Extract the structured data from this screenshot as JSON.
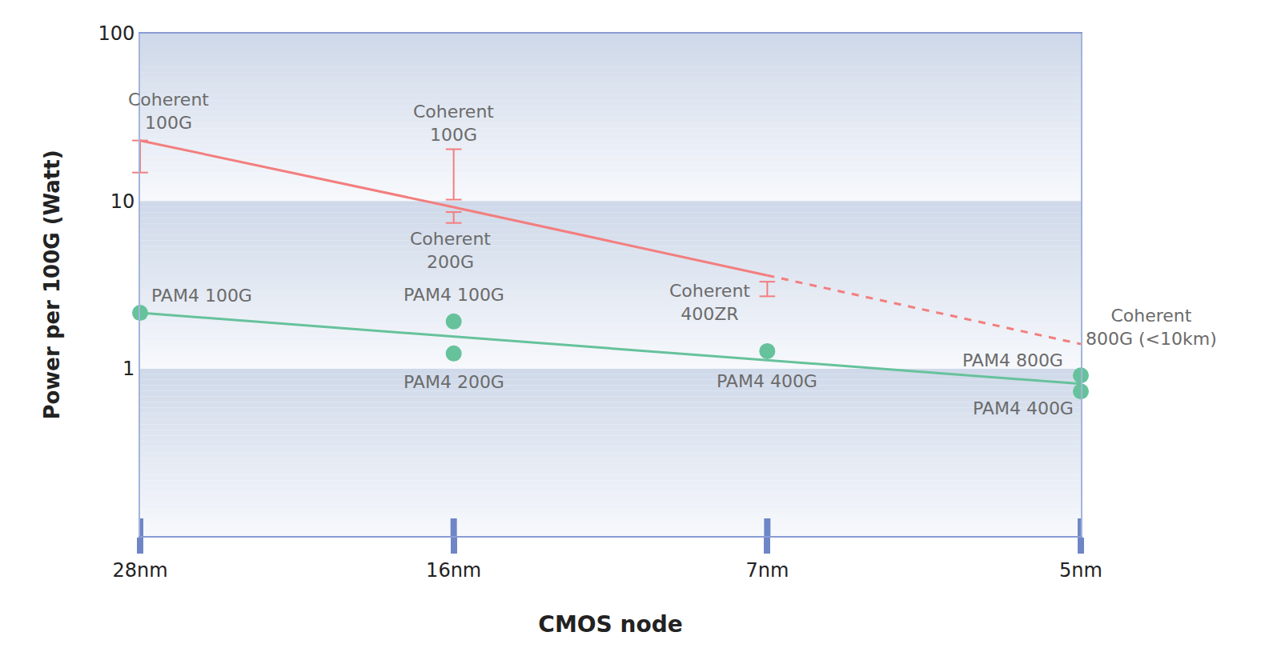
{
  "chart_data": {
    "type": "line",
    "x_label": "CMOS node",
    "y_label": "Power per 100G (Watt)",
    "categories": [
      "28nm",
      "16nm",
      "7nm",
      "5nm"
    ],
    "log": "y",
    "ylim": [
      0.1,
      100
    ],
    "yticks": [
      1,
      10,
      100
    ],
    "series": [
      {
        "color": "#f37e7e",
        "line_style": "solid",
        "values": [
          23,
          9.2,
          3.6,
          null
        ]
      },
      {
        "color": "#f37e7e",
        "line_style": "dashed",
        "values": [
          null,
          null,
          3.6,
          1.4
        ],
        "end_label": "Coherent\n800G (<10km)"
      },
      {
        "color": "#66c29b",
        "line_style": "solid",
        "values": [
          2.15,
          1.55,
          1.12,
          0.81
        ]
      }
    ],
    "ranges": [
      {
        "category": "28nm",
        "low": 14.8,
        "high": 23,
        "label": "Coherent\n100G",
        "color": "#f37e7e"
      },
      {
        "category": "16nm",
        "low": 10.2,
        "high": 20.4,
        "label": "Coherent\n100G",
        "color": "#f37e7e"
      },
      {
        "category": "16nm",
        "low": 7.4,
        "high": 8.6,
        "label": "Coherent\n200G",
        "color": "#f37e7e"
      },
      {
        "category": "7nm",
        "low": 2.7,
        "high": 3.3,
        "label": "Coherent\n400ZR",
        "color": "#f37e7e"
      }
    ],
    "points": [
      {
        "category": "28nm",
        "value": 2.15,
        "label": "PAM4 100G"
      },
      {
        "category": "16nm",
        "value": 1.91,
        "label": "PAM4 100G"
      },
      {
        "category": "16nm",
        "value": 1.23,
        "label": "PAM4 200G"
      },
      {
        "category": "7nm",
        "value": 1.27,
        "label": "PAM4 400G"
      },
      {
        "category": "5nm",
        "value": 0.91,
        "label": "PAM4 800G"
      },
      {
        "category": "5nm",
        "value": 0.73,
        "label": "PAM4 400G"
      }
    ],
    "points_color": "#66c29b",
    "marker": "circle"
  }
}
